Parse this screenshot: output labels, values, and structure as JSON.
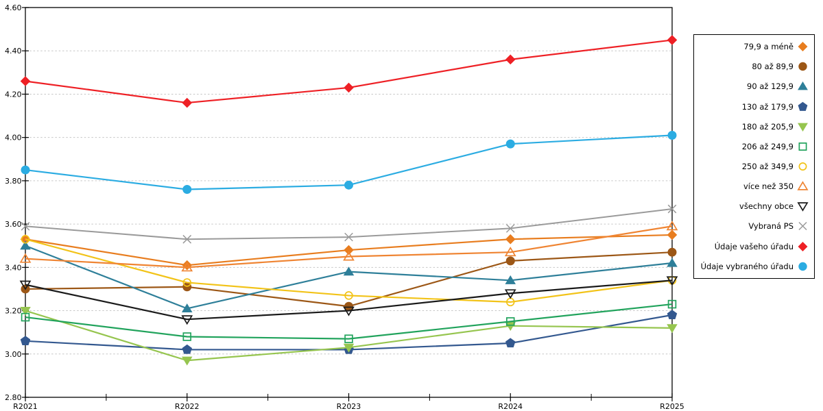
{
  "chart_data": {
    "type": "line",
    "title": "",
    "xlabel": "",
    "ylabel": "",
    "categories": [
      "R2021",
      "R2022",
      "R2023",
      "R2024",
      "R2025"
    ],
    "ylim": [
      2.8,
      4.6
    ],
    "ytick_step": 0.2,
    "ytick_labels": [
      "2.80",
      "3.00",
      "3.20",
      "3.40",
      "3.60",
      "3.80",
      "4.00",
      "4.20",
      "4.40",
      "4.60"
    ],
    "grid": "horizontal-dashed",
    "grid_color": "#c6c6c6",
    "legend_position": "right-outside",
    "series": [
      {
        "name": "79,9 a méně",
        "marker": "diamond",
        "fill": "filled",
        "color": "#E87D1F",
        "values": [
          3.53,
          3.41,
          3.48,
          3.53,
          3.55
        ]
      },
      {
        "name": "80 až 89,9",
        "marker": "circle",
        "fill": "filled",
        "color": "#9C5716",
        "values": [
          3.3,
          3.31,
          3.22,
          3.43,
          3.47
        ]
      },
      {
        "name": "90 až 129,9",
        "marker": "triangle-up",
        "fill": "filled",
        "color": "#2E7F99",
        "values": [
          3.5,
          3.21,
          3.38,
          3.34,
          3.42
        ]
      },
      {
        "name": "130 až 179,9",
        "marker": "pentagon",
        "fill": "filled",
        "color": "#33588F",
        "values": [
          3.06,
          3.02,
          3.02,
          3.05,
          3.18
        ]
      },
      {
        "name": "180 až 205,9",
        "marker": "triangle-down",
        "fill": "filled",
        "color": "#96C54F",
        "values": [
          3.2,
          2.97,
          3.03,
          3.13,
          3.12
        ]
      },
      {
        "name": "206 až 249,9",
        "marker": "square",
        "fill": "open",
        "color": "#21A35C",
        "values": [
          3.17,
          3.08,
          3.07,
          3.15,
          3.23
        ]
      },
      {
        "name": "250 až 349,9",
        "marker": "circle",
        "fill": "open",
        "color": "#F2C318",
        "values": [
          3.53,
          3.33,
          3.27,
          3.24,
          3.34
        ]
      },
      {
        "name": "více než 350",
        "marker": "triangle-up",
        "fill": "open",
        "color": "#EF8432",
        "values": [
          3.44,
          3.4,
          3.45,
          3.47,
          3.59
        ]
      },
      {
        "name": "všechny obce",
        "marker": "triangle-down",
        "fill": "open",
        "color": "#1A1A1A",
        "values": [
          3.32,
          3.16,
          3.2,
          3.28,
          3.34
        ]
      },
      {
        "name": "Vybraná PS",
        "marker": "x-cross",
        "fill": "open",
        "color": "#9A9A9A",
        "values": [
          3.59,
          3.53,
          3.54,
          3.58,
          3.67
        ]
      },
      {
        "name": "Údaje vašeho úřadu",
        "marker": "diamond",
        "fill": "filled",
        "color": "#EE2025",
        "values": [
          4.26,
          4.16,
          4.23,
          4.36,
          4.45
        ]
      },
      {
        "name": "Údaje vybraného úřadu",
        "marker": "circle",
        "fill": "filled",
        "color": "#2BACE2",
        "values": [
          3.85,
          3.76,
          3.78,
          3.97,
          4.01
        ]
      }
    ]
  }
}
